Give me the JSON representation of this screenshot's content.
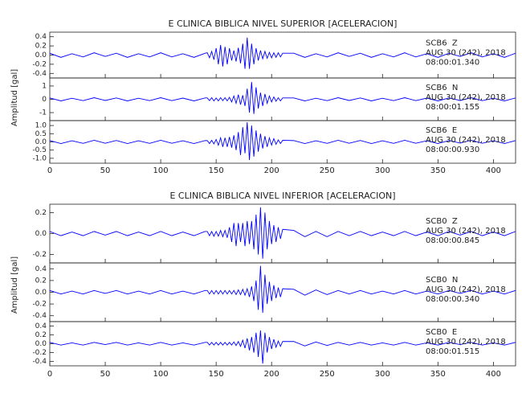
{
  "chart_data": [
    {
      "type": "line",
      "title": "E CLINICA BIBLICA NIVEL SUPERIOR [ACELERACION]",
      "ylabel": "Amplitud [gal]",
      "xlim": [
        0,
        420
      ],
      "xticks": [
        0,
        50,
        100,
        150,
        200,
        250,
        300,
        350,
        400
      ],
      "x": [
        0,
        10,
        20,
        30,
        40,
        50,
        60,
        70,
        80,
        90,
        100,
        110,
        120,
        130,
        140,
        142,
        144,
        146,
        148,
        150,
        152,
        154,
        156,
        158,
        160,
        162,
        164,
        166,
        168,
        170,
        172,
        174,
        176,
        178,
        180,
        182,
        184,
        186,
        188,
        190,
        192,
        194,
        196,
        198,
        200,
        202,
        204,
        206,
        208,
        210,
        220,
        230,
        240,
        250,
        260,
        270,
        280,
        290,
        300,
        310,
        320,
        330,
        340,
        350,
        360,
        370,
        380,
        390,
        400,
        410,
        420
      ],
      "series": [
        {
          "name": "SCB6  Z",
          "date": "AUG 30 (242), 2018",
          "time": "08:00:01.340",
          "color": "#0000ff",
          "ylim": [
            -0.5,
            0.5
          ],
          "yticks": [
            0.4,
            0.2,
            {
              "value": 0,
              "label": "0.0"
            },
            -0.2,
            -0.4
          ],
          "values": [
            0.04,
            -0.05,
            0.03,
            -0.04,
            0.05,
            -0.03,
            0.04,
            -0.05,
            0.03,
            -0.04,
            0.05,
            -0.04,
            0.03,
            -0.05,
            0.04,
            0.05,
            -0.06,
            0.08,
            -0.1,
            0.15,
            -0.2,
            0.22,
            -0.25,
            0.18,
            -0.2,
            0.15,
            -0.12,
            0.1,
            -0.14,
            0.16,
            -0.18,
            0.25,
            -0.3,
            0.38,
            -0.3,
            0.25,
            -0.2,
            0.15,
            -0.12,
            0.1,
            -0.08,
            0.08,
            -0.07,
            0.06,
            -0.06,
            0.05,
            -0.05,
            0.05,
            -0.04,
            0.04,
            0.04,
            -0.05,
            0.03,
            -0.04,
            0.05,
            -0.03,
            0.04,
            -0.05,
            0.03,
            -0.04,
            0.05,
            -0.04,
            0.03,
            -0.05,
            0.04,
            -0.03,
            0.05,
            -0.04,
            0.03,
            -0.05,
            0.04
          ]
        },
        {
          "name": "SCB6  N",
          "date": "AUG 30 (242), 2018",
          "time": "08:00:01.155",
          "color": "#0000ff",
          "ylim": [
            -1.6,
            1.6
          ],
          "yticks": [
            1,
            0,
            -1
          ],
          "values": [
            0.1,
            -0.12,
            0.08,
            -0.1,
            0.12,
            -0.09,
            0.1,
            -0.12,
            0.08,
            -0.1,
            0.12,
            -0.1,
            0.09,
            -0.12,
            0.1,
            0.1,
            -0.1,
            0.12,
            -0.12,
            0.1,
            -0.12,
            0.12,
            -0.1,
            0.12,
            -0.12,
            0.15,
            -0.2,
            0.25,
            -0.3,
            0.35,
            -0.4,
            0.3,
            -0.5,
            0.8,
            -1.0,
            1.3,
            -1.1,
            0.9,
            -0.7,
            0.5,
            -0.5,
            0.4,
            -0.3,
            0.25,
            -0.2,
            0.18,
            -0.15,
            0.12,
            -0.12,
            0.1,
            0.1,
            -0.12,
            0.08,
            -0.1,
            0.12,
            -0.09,
            0.1,
            -0.12,
            0.08,
            -0.1,
            0.12,
            -0.1,
            0.09,
            -0.12,
            0.1,
            -0.09,
            0.12,
            -0.1,
            0.08,
            -0.12,
            0.1
          ]
        },
        {
          "name": "SCB6  E",
          "date": "AUG 30 (242), 2018",
          "time": "08:00:00.930",
          "color": "#0000ff",
          "ylim": [
            -1.3,
            1.3
          ],
          "yticks": [
            {
              "value": 1,
              "label": "1.0"
            },
            0.5,
            {
              "value": 0,
              "label": "0.0"
            },
            -0.5,
            {
              "value": -1,
              "label": "-1.0"
            }
          ],
          "values": [
            0.08,
            -0.1,
            0.07,
            -0.09,
            0.1,
            -0.08,
            0.09,
            -0.1,
            0.07,
            -0.09,
            0.1,
            -0.08,
            0.07,
            -0.1,
            0.08,
            0.08,
            -0.1,
            0.1,
            -0.12,
            0.15,
            -0.2,
            0.25,
            -0.3,
            0.25,
            -0.3,
            0.3,
            -0.35,
            0.4,
            -0.5,
            0.6,
            -0.8,
            0.9,
            -0.7,
            1.2,
            -1.1,
            1.0,
            -0.9,
            0.7,
            -0.6,
            0.5,
            -0.4,
            0.35,
            -0.3,
            0.25,
            -0.2,
            0.2,
            -0.15,
            0.12,
            -0.1,
            0.1,
            0.08,
            -0.1,
            0.07,
            -0.09,
            0.1,
            -0.08,
            0.09,
            -0.1,
            0.07,
            -0.09,
            0.1,
            -0.08,
            0.07,
            -0.1,
            0.08,
            -0.07,
            0.1,
            -0.08,
            0.07,
            -0.1,
            0.08
          ]
        }
      ]
    },
    {
      "type": "line",
      "title": "E CLINICA BIBLICA NIVEL INFERIOR [ACELERACION]",
      "ylabel": "Amplitud [gal]",
      "xlim": [
        0,
        420
      ],
      "xticks": [
        0,
        50,
        100,
        150,
        200,
        250,
        300,
        350,
        400
      ],
      "x": [
        0,
        10,
        20,
        30,
        40,
        50,
        60,
        70,
        80,
        90,
        100,
        110,
        120,
        130,
        140,
        142,
        144,
        146,
        148,
        150,
        152,
        154,
        156,
        158,
        160,
        162,
        164,
        166,
        168,
        170,
        172,
        174,
        176,
        178,
        180,
        182,
        184,
        186,
        188,
        190,
        192,
        194,
        196,
        198,
        200,
        202,
        204,
        206,
        208,
        210,
        220,
        230,
        240,
        250,
        260,
        270,
        280,
        290,
        300,
        310,
        320,
        330,
        340,
        350,
        360,
        370,
        380,
        390,
        400,
        410,
        420
      ],
      "series": [
        {
          "name": "SCB0  Z",
          "date": "AUG 30 (242), 2018",
          "time": "08:00:00.845",
          "color": "#0000ff",
          "ylim": [
            -0.28,
            0.28
          ],
          "yticks": [
            0.2,
            {
              "value": 0,
              "label": "0.0"
            },
            -0.2
          ],
          "values": [
            0.02,
            -0.02,
            0.015,
            -0.02,
            0.02,
            -0.015,
            0.02,
            -0.02,
            0.015,
            -0.02,
            0.02,
            -0.02,
            0.015,
            -0.02,
            0.02,
            0.02,
            -0.02,
            0.02,
            -0.025,
            0.02,
            -0.025,
            0.03,
            -0.03,
            0.03,
            -0.04,
            0.06,
            -0.08,
            0.1,
            -0.12,
            0.1,
            -0.08,
            0.1,
            -0.12,
            0.12,
            -0.1,
            0.12,
            -0.15,
            0.18,
            -0.2,
            0.25,
            -0.24,
            0.2,
            -0.15,
            0.12,
            -0.1,
            0.08,
            -0.08,
            0.06,
            -0.05,
            0.04,
            0.03,
            -0.03,
            0.02,
            -0.03,
            0.02,
            -0.02,
            0.02,
            -0.02,
            0.015,
            -0.02,
            0.02,
            -0.02,
            0.015,
            -0.02,
            0.02,
            -0.015,
            0.02,
            -0.02,
            0.015,
            -0.02,
            0.02
          ]
        },
        {
          "name": "SCB0  N",
          "date": "AUG 30 (242), 2018",
          "time": "08:00:00.340",
          "color": "#0000ff",
          "ylim": [
            -0.5,
            0.5
          ],
          "yticks": [
            0.4,
            0.2,
            {
              "value": 0,
              "label": "0.0"
            },
            -0.2,
            -0.4
          ],
          "values": [
            0.03,
            -0.03,
            0.02,
            -0.03,
            0.03,
            -0.02,
            0.03,
            -0.03,
            0.02,
            -0.03,
            0.03,
            -0.03,
            0.02,
            -0.03,
            0.03,
            0.03,
            -0.03,
            0.03,
            -0.03,
            0.03,
            -0.03,
            0.03,
            -0.03,
            0.03,
            -0.03,
            0.03,
            -0.03,
            0.03,
            -0.04,
            0.04,
            -0.04,
            0.05,
            -0.05,
            0.06,
            -0.08,
            0.1,
            -0.15,
            0.2,
            -0.3,
            0.45,
            -0.35,
            0.3,
            -0.2,
            0.18,
            -0.15,
            0.12,
            -0.1,
            0.08,
            -0.08,
            0.06,
            0.05,
            -0.05,
            0.04,
            -0.04,
            0.03,
            -0.03,
            0.03,
            -0.03,
            0.02,
            -0.03,
            0.03,
            -0.03,
            0.02,
            -0.03,
            0.03,
            -0.02,
            0.03,
            -0.03,
            0.02,
            -0.03,
            0.03
          ]
        },
        {
          "name": "SCB0  E",
          "date": "AUG 30 (242), 2018",
          "time": "08:00:01.515",
          "color": "#0000ff",
          "ylim": [
            -0.5,
            0.5
          ],
          "yticks": [
            0.4,
            0.2,
            {
              "value": 0,
              "label": "0.0"
            },
            -0.2,
            -0.4
          ],
          "values": [
            0.03,
            -0.03,
            0.02,
            -0.03,
            0.03,
            -0.02,
            0.03,
            -0.03,
            0.02,
            -0.03,
            0.03,
            -0.03,
            0.02,
            -0.03,
            0.03,
            0.03,
            -0.03,
            0.03,
            -0.03,
            0.03,
            -0.03,
            0.03,
            -0.03,
            0.03,
            -0.03,
            0.03,
            -0.03,
            0.04,
            -0.04,
            0.05,
            -0.06,
            0.08,
            -0.1,
            0.12,
            -0.15,
            0.15,
            -0.2,
            0.25,
            -0.3,
            0.3,
            -0.45,
            0.25,
            -0.2,
            0.15,
            -0.12,
            0.1,
            -0.08,
            0.06,
            -0.06,
            0.05,
            0.05,
            -0.05,
            0.04,
            -0.04,
            0.03,
            -0.03,
            0.03,
            -0.03,
            0.02,
            -0.03,
            0.03,
            -0.03,
            0.02,
            -0.03,
            0.03,
            -0.02,
            0.03,
            -0.03,
            0.02,
            -0.03,
            0.03
          ]
        }
      ]
    }
  ]
}
